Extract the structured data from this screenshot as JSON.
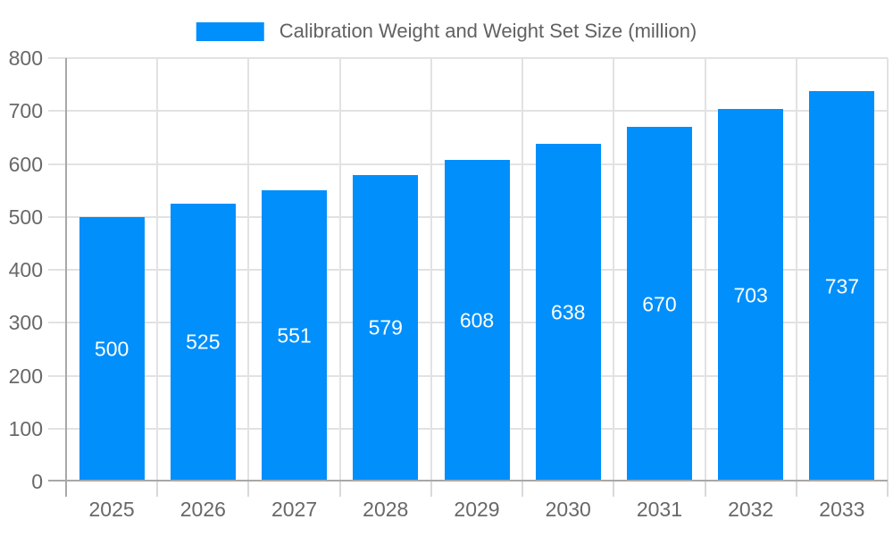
{
  "chart_data": {
    "type": "bar",
    "title": "Calibration Weight and Weight Set Size (million)",
    "categories": [
      "2025",
      "2026",
      "2027",
      "2028",
      "2029",
      "2030",
      "2031",
      "2032",
      "2033"
    ],
    "values": [
      500,
      525,
      551,
      579,
      608,
      638,
      670,
      703,
      737
    ],
    "xlabel": "",
    "ylabel": "",
    "ylim": [
      0,
      800
    ],
    "yticks": [
      0,
      100,
      200,
      300,
      400,
      500,
      600,
      700,
      800
    ],
    "grid": true,
    "legend_position": "top-center",
    "data_labels_position": "inside-center",
    "colors": {
      "bar": "#008FFB",
      "grid": "#e2e2e2",
      "tick": "#d9d9d9",
      "axis_line": "#a8a8a8",
      "axis_label": "#686868",
      "legend_text": "#5f6163",
      "data_label": "#ffffff",
      "background": "#ffffff"
    }
  }
}
